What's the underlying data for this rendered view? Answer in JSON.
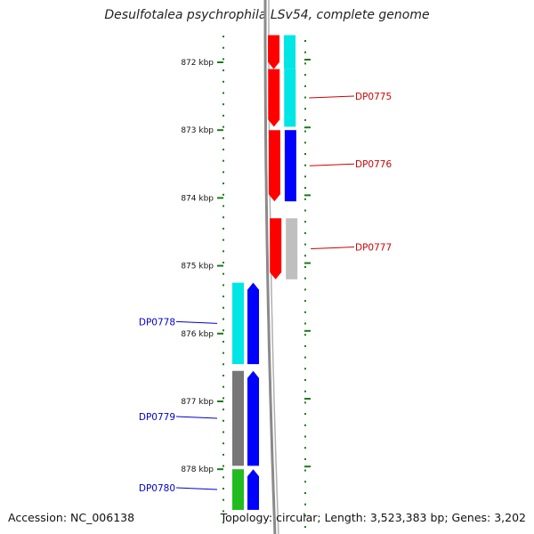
{
  "title": "Desulfotalea psychrophila LSv54, complete genome",
  "scale": {
    "unit": "kbp",
    "ticks": [
      {
        "kbp": 872,
        "label": "872 kbp"
      },
      {
        "kbp": 873,
        "label": "873 kbp"
      },
      {
        "kbp": 874,
        "label": "874 kbp"
      },
      {
        "kbp": 875,
        "label": "875 kbp"
      },
      {
        "kbp": 876,
        "label": "876 kbp"
      },
      {
        "kbp": 877,
        "label": "877 kbp"
      },
      {
        "kbp": 878,
        "label": "878 kbp"
      }
    ]
  },
  "colors": {
    "red": "#ff0000",
    "cyan": "#00e5e5",
    "blue": "#0000ff",
    "gray": "#bfbfbf",
    "darkgray": "#777777",
    "green": "#22bb22",
    "tick": "#1a7a1a",
    "backbone": "#8a8a8a",
    "label_red": "#cc0000",
    "label_blue": "#0000cc"
  },
  "genes": [
    {
      "id": "gene-top-forward",
      "start_kbp": 871.6,
      "end_kbp": 872.1,
      "strand": "forward",
      "color": "red",
      "band_color": "cyan"
    },
    {
      "id": "DP0775",
      "label": "DP0775",
      "start_kbp": 872.1,
      "end_kbp": 872.95,
      "strand": "forward",
      "color": "red",
      "band_color": "cyan"
    },
    {
      "id": "DP0776",
      "label": "DP0776",
      "start_kbp": 873.0,
      "end_kbp": 874.05,
      "strand": "forward",
      "color": "red",
      "band_color": "blue"
    },
    {
      "id": "DP0777",
      "label": "DP0777",
      "start_kbp": 874.3,
      "end_kbp": 875.2,
      "strand": "forward",
      "color": "red",
      "band_color": "gray"
    },
    {
      "id": "DP0778",
      "label": "DP0778",
      "start_kbp": 875.25,
      "end_kbp": 876.45,
      "strand": "reverse",
      "color": "blue",
      "band_color": "cyan"
    },
    {
      "id": "DP0779",
      "label": "DP0779",
      "start_kbp": 876.55,
      "end_kbp": 877.95,
      "strand": "reverse",
      "color": "blue",
      "band_color": "darkgray"
    },
    {
      "id": "DP0780",
      "label": "DP0780",
      "start_kbp": 878.0,
      "end_kbp": 878.6,
      "strand": "reverse",
      "color": "blue",
      "band_color": "green"
    }
  ],
  "footer": {
    "accession": "Accession: NC_006138",
    "topology": "Topology: circular; Length: 3,523,383 bp; Genes: 3,202"
  }
}
